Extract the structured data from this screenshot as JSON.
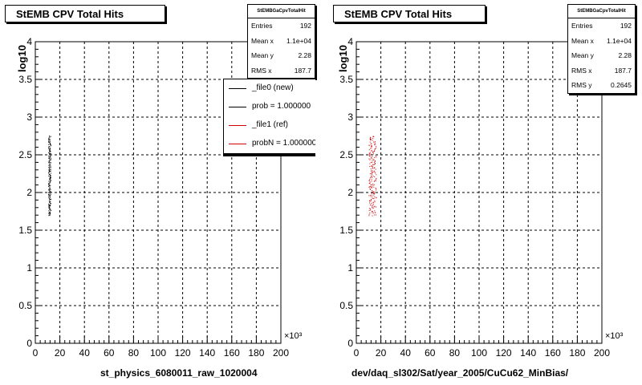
{
  "footer_text": "",
  "pads": [
    {
      "title": "StEMB CPV Total Hits",
      "stats": {
        "title": "StEMBGaCpvTotalHit",
        "rows": [
          {
            "label": "Entries",
            "value": "192"
          },
          {
            "label": "Mean x",
            "value": "1.1e+04"
          },
          {
            "label": "Mean y",
            "value": "2.28"
          },
          {
            "label": "RMS x",
            "value": "187.7"
          }
        ]
      },
      "legend": {
        "entries": [
          {
            "label": "_file0 (new)",
            "color": "#000000"
          },
          {
            "label": "prob = 1.000000",
            "color": "#000000"
          },
          {
            "label": "_file1 (ref)",
            "color": "#cc0000"
          },
          {
            "label": "probN = 1.000000",
            "color": "#cc0000"
          }
        ]
      },
      "ylabel": "log10",
      "xlabel": "st_physics_6080011_raw_1020004",
      "x_exponent": "×10³"
    },
    {
      "title": "StEMB CPV Total Hits",
      "stats": {
        "title": "StEMBGaCpvTotalHit",
        "rows": [
          {
            "label": "Entries",
            "value": "192"
          },
          {
            "label": "Mean x",
            "value": "1.1e+04"
          },
          {
            "label": "Mean y",
            "value": "2.28"
          },
          {
            "label": "RMS x",
            "value": "187.7"
          },
          {
            "label": "RMS y",
            "value": "0.2645"
          }
        ]
      },
      "ylabel": "log10",
      "xlabel": "dev/daq_sl302/Sat/year_2005/CuCu62_MinBias/",
      "x_exponent": "×10³"
    }
  ],
  "chart_data": [
    {
      "type": "scatter",
      "title": "StEMB CPV Total Hits",
      "xlabel": "st_physics_6080011_raw_1020004",
      "ylabel": "log10",
      "xlim": [
        0,
        200
      ],
      "ylim": [
        0,
        4
      ],
      "x_ticks": [
        "0",
        "20",
        "40",
        "60",
        "80",
        "100",
        "120",
        "140",
        "160",
        "180",
        "200"
      ],
      "y_ticks": [
        "0",
        "0.5",
        "1",
        "1.5",
        "2",
        "2.5",
        "3",
        "3.5",
        "4"
      ],
      "x_scale_label": "×10³",
      "grid": true,
      "legend_position": "top-right",
      "series": [
        {
          "name": "_file0 (new)",
          "color": "#000000",
          "x_range": [
            10.5,
            12.5
          ],
          "y_range": [
            1.7,
            2.75
          ],
          "n_points": 192
        }
      ]
    },
    {
      "type": "scatter",
      "title": "StEMB CPV Total Hits",
      "xlabel": "dev/daq_sl302/Sat/year_2005/CuCu62_MinBias/",
      "ylabel": "log10",
      "xlim": [
        0,
        200
      ],
      "ylim": [
        0,
        4
      ],
      "x_ticks": [
        "0",
        "20",
        "40",
        "60",
        "80",
        "100",
        "120",
        "140",
        "160",
        "180",
        "200"
      ],
      "y_ticks": [
        "0",
        "0.5",
        "1",
        "1.5",
        "2",
        "2.5",
        "3",
        "3.5",
        "4"
      ],
      "x_scale_label": "×10³",
      "grid": true,
      "series": [
        {
          "name": "_file1 (ref)",
          "color": "#cc0000",
          "x_range": [
            10,
            16
          ],
          "y_range": [
            1.7,
            2.75
          ],
          "n_points": 192
        }
      ]
    }
  ]
}
